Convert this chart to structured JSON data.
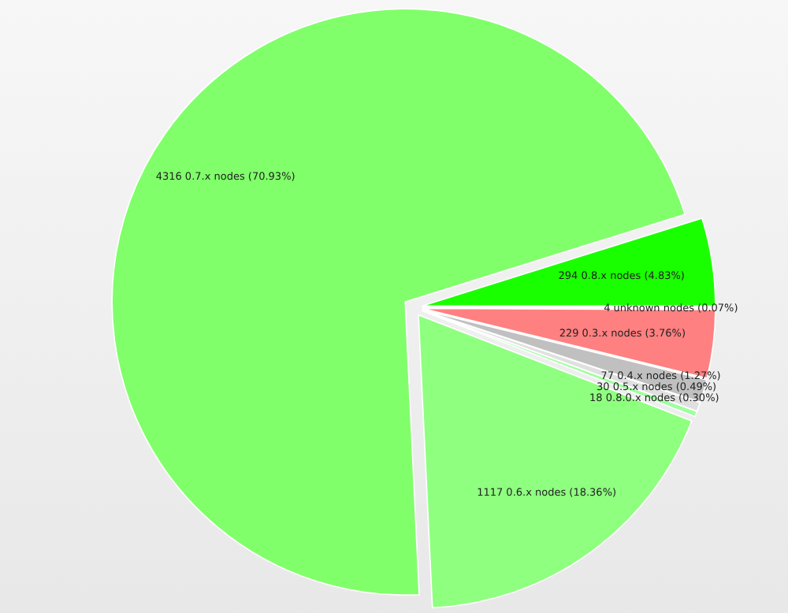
{
  "chart_data": {
    "type": "pie",
    "categories": [
      "294 0.8.x nodes (4.83%)",
      "4316 0.7.x nodes (70.93%)",
      "1117 0.6.x nodes (18.36%)",
      "18 0.8.0.x nodes (0.30%)",
      "30 0.5.x nodes (0.49%)",
      "77 0.4.x nodes (1.27%)",
      "229 0.3.x nodes (3.76%)",
      "4 unknown nodes (0.07%)"
    ],
    "values": [
      294,
      4316,
      1117,
      18,
      30,
      77,
      229,
      4
    ],
    "colors": [
      "#1aff00",
      "#80ff6a",
      "#8fff80",
      "#a0ffa0",
      "#e0e0e0",
      "#c0c0c0",
      "#ff8080",
      "#d0d0d0"
    ]
  }
}
